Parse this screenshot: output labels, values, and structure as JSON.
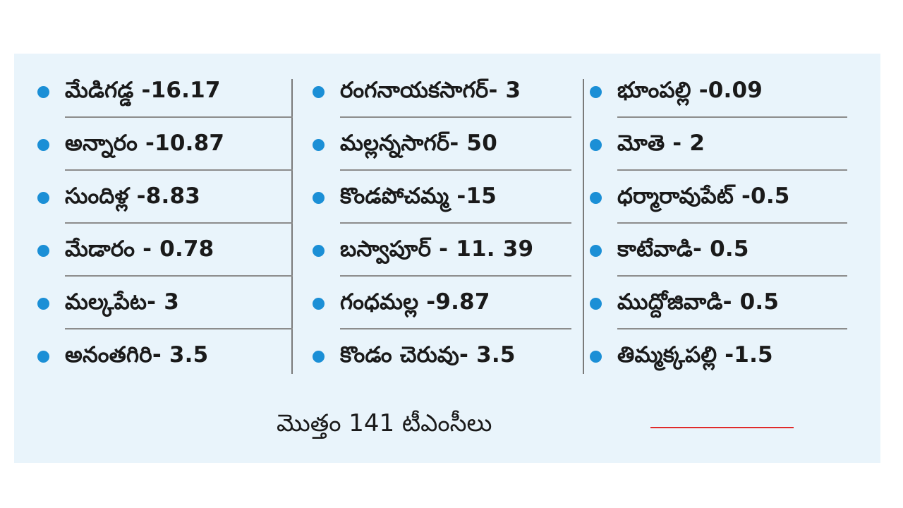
{
  "columns": [
    {
      "items": [
        {
          "text": "మేడిగడ్డ -16.17"
        },
        {
          "text": "అన్నారం -10.87"
        },
        {
          "text": "సుందిళ్ల -8.83"
        },
        {
          "text": "మేడారం - 0.78"
        },
        {
          "text": "మల్కపేట- 3"
        },
        {
          "text": "అనంతగిరి- 3.5"
        }
      ]
    },
    {
      "items": [
        {
          "text": "రంగనాయకసాగర్- 3"
        },
        {
          "text": "మల్లన్నసాగర్- 50"
        },
        {
          "text": "కొండపోచమ్మ -15"
        },
        {
          "text": "బస్వాపూర్ - 11. 39"
        },
        {
          "text": "గంధమల్ల -9.87"
        },
        {
          "text": "కొండం చెరువు- 3.5"
        }
      ]
    },
    {
      "items": [
        {
          "text": "భూంపల్లి -0.09"
        },
        {
          "text": "మోతె - 2"
        },
        {
          "text": "ధర్మారావుపేట్ -0.5"
        },
        {
          "text": "కాటేవాడి- 0.5"
        },
        {
          "text": "ముద్దోజివాడి- 0.5"
        },
        {
          "text": "తిమ్మక్కపల్లి -1.5"
        }
      ]
    }
  ],
  "total": {
    "text": "మొత్తం 141 టీఎంసీలు"
  },
  "colors": {
    "panel_background": "#e9f4fb",
    "bullet": "#1b8fd6",
    "rule": "#8c8c8c",
    "accent_line": "#e02a2a"
  }
}
